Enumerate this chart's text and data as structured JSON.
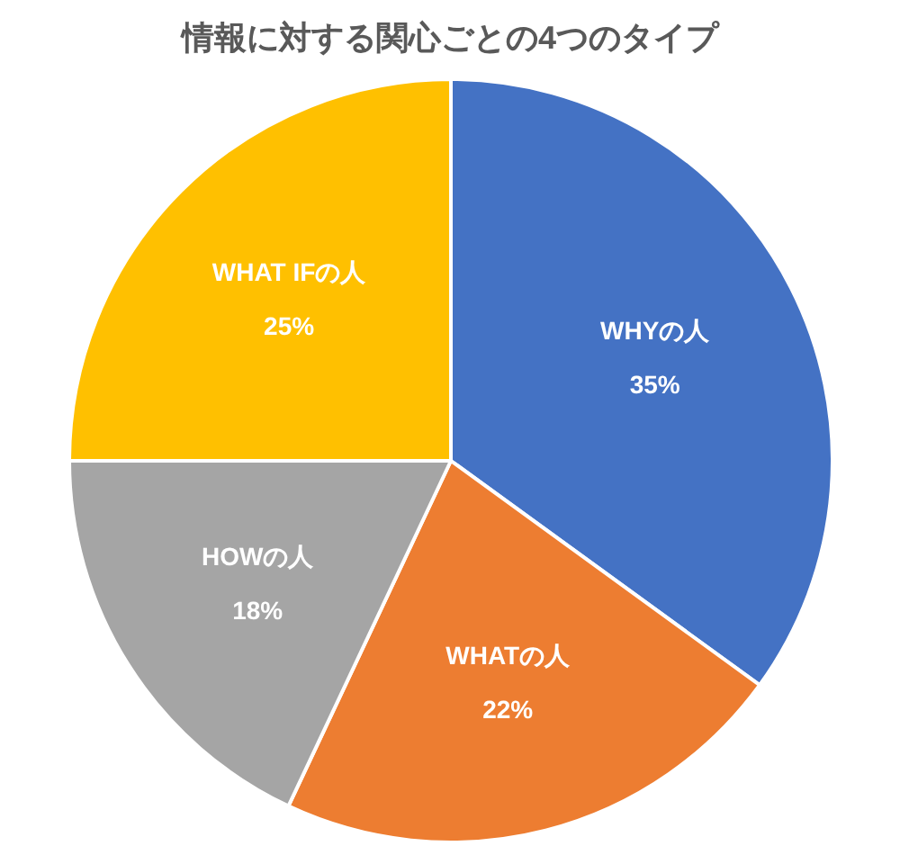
{
  "chart_data": {
    "type": "pie",
    "title": "情報に対する関心ごとの4つのタイプ",
    "categories": [
      "WHYの人",
      "WHATの人",
      "HOWの人",
      "WHAT IFの人"
    ],
    "values": [
      35,
      22,
      18,
      25
    ],
    "colors": [
      "#4472c4",
      "#ed7d31",
      "#a5a5a5",
      "#ffc000"
    ],
    "value_labels": [
      "35%",
      "22%",
      "18%",
      "25%"
    ]
  }
}
